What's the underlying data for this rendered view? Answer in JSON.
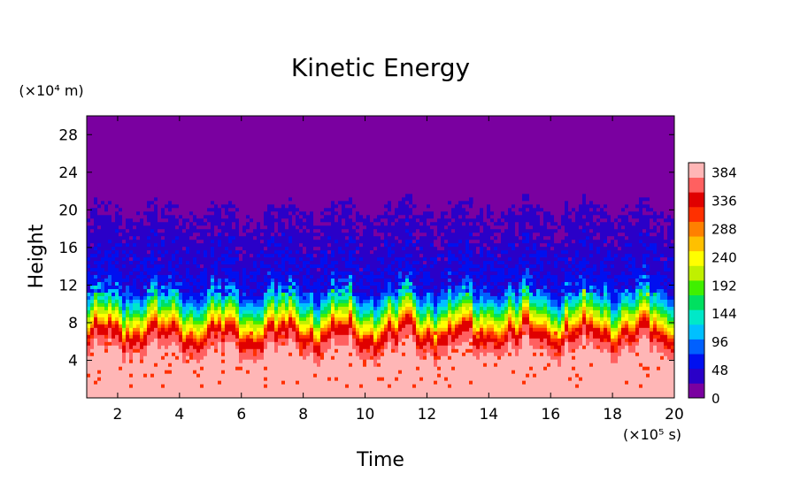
{
  "chart_data": {
    "type": "heatmap",
    "title": "Kinetic Energy",
    "xlabel": "Time",
    "ylabel": "Height",
    "x_unit": "(×10⁵ s)",
    "y_unit": "(×10⁴ m)",
    "xlim": [
      1,
      20
    ],
    "ylim": [
      0,
      30
    ],
    "x_ticks": [
      2,
      4,
      6,
      8,
      10,
      12,
      14,
      16,
      18,
      20
    ],
    "y_ticks": [
      4,
      8,
      12,
      16,
      20,
      24,
      28
    ],
    "colorbar": {
      "range": [
        0,
        400
      ],
      "ticks": [
        0,
        48,
        96,
        144,
        192,
        240,
        288,
        336,
        384
      ],
      "colors": [
        "#7a00a0",
        "#2a00c8",
        "#0010f0",
        "#0060ff",
        "#00c0ff",
        "#00e8c8",
        "#00e060",
        "#40f000",
        "#c0f000",
        "#ffff00",
        "#ffc000",
        "#ff8000",
        "#ff3000",
        "#e00000",
        "#ff6060",
        "#ffb6b6"
      ]
    },
    "profile": {
      "description_levels": [
        {
          "height": 0.5,
          "value": 400
        },
        {
          "height": 4,
          "value": 400
        },
        {
          "height": 7,
          "value": 330
        },
        {
          "height": 8,
          "value": 250
        },
        {
          "height": 9,
          "value": 200
        },
        {
          "height": 10,
          "value": 140
        },
        {
          "height": 11,
          "value": 90
        },
        {
          "height": 12,
          "value": 55
        },
        {
          "height": 16,
          "value": 40
        },
        {
          "height": 20,
          "value": 25
        },
        {
          "height": 22,
          "value": 0
        },
        {
          "height": 30,
          "value": 0
        }
      ]
    }
  }
}
